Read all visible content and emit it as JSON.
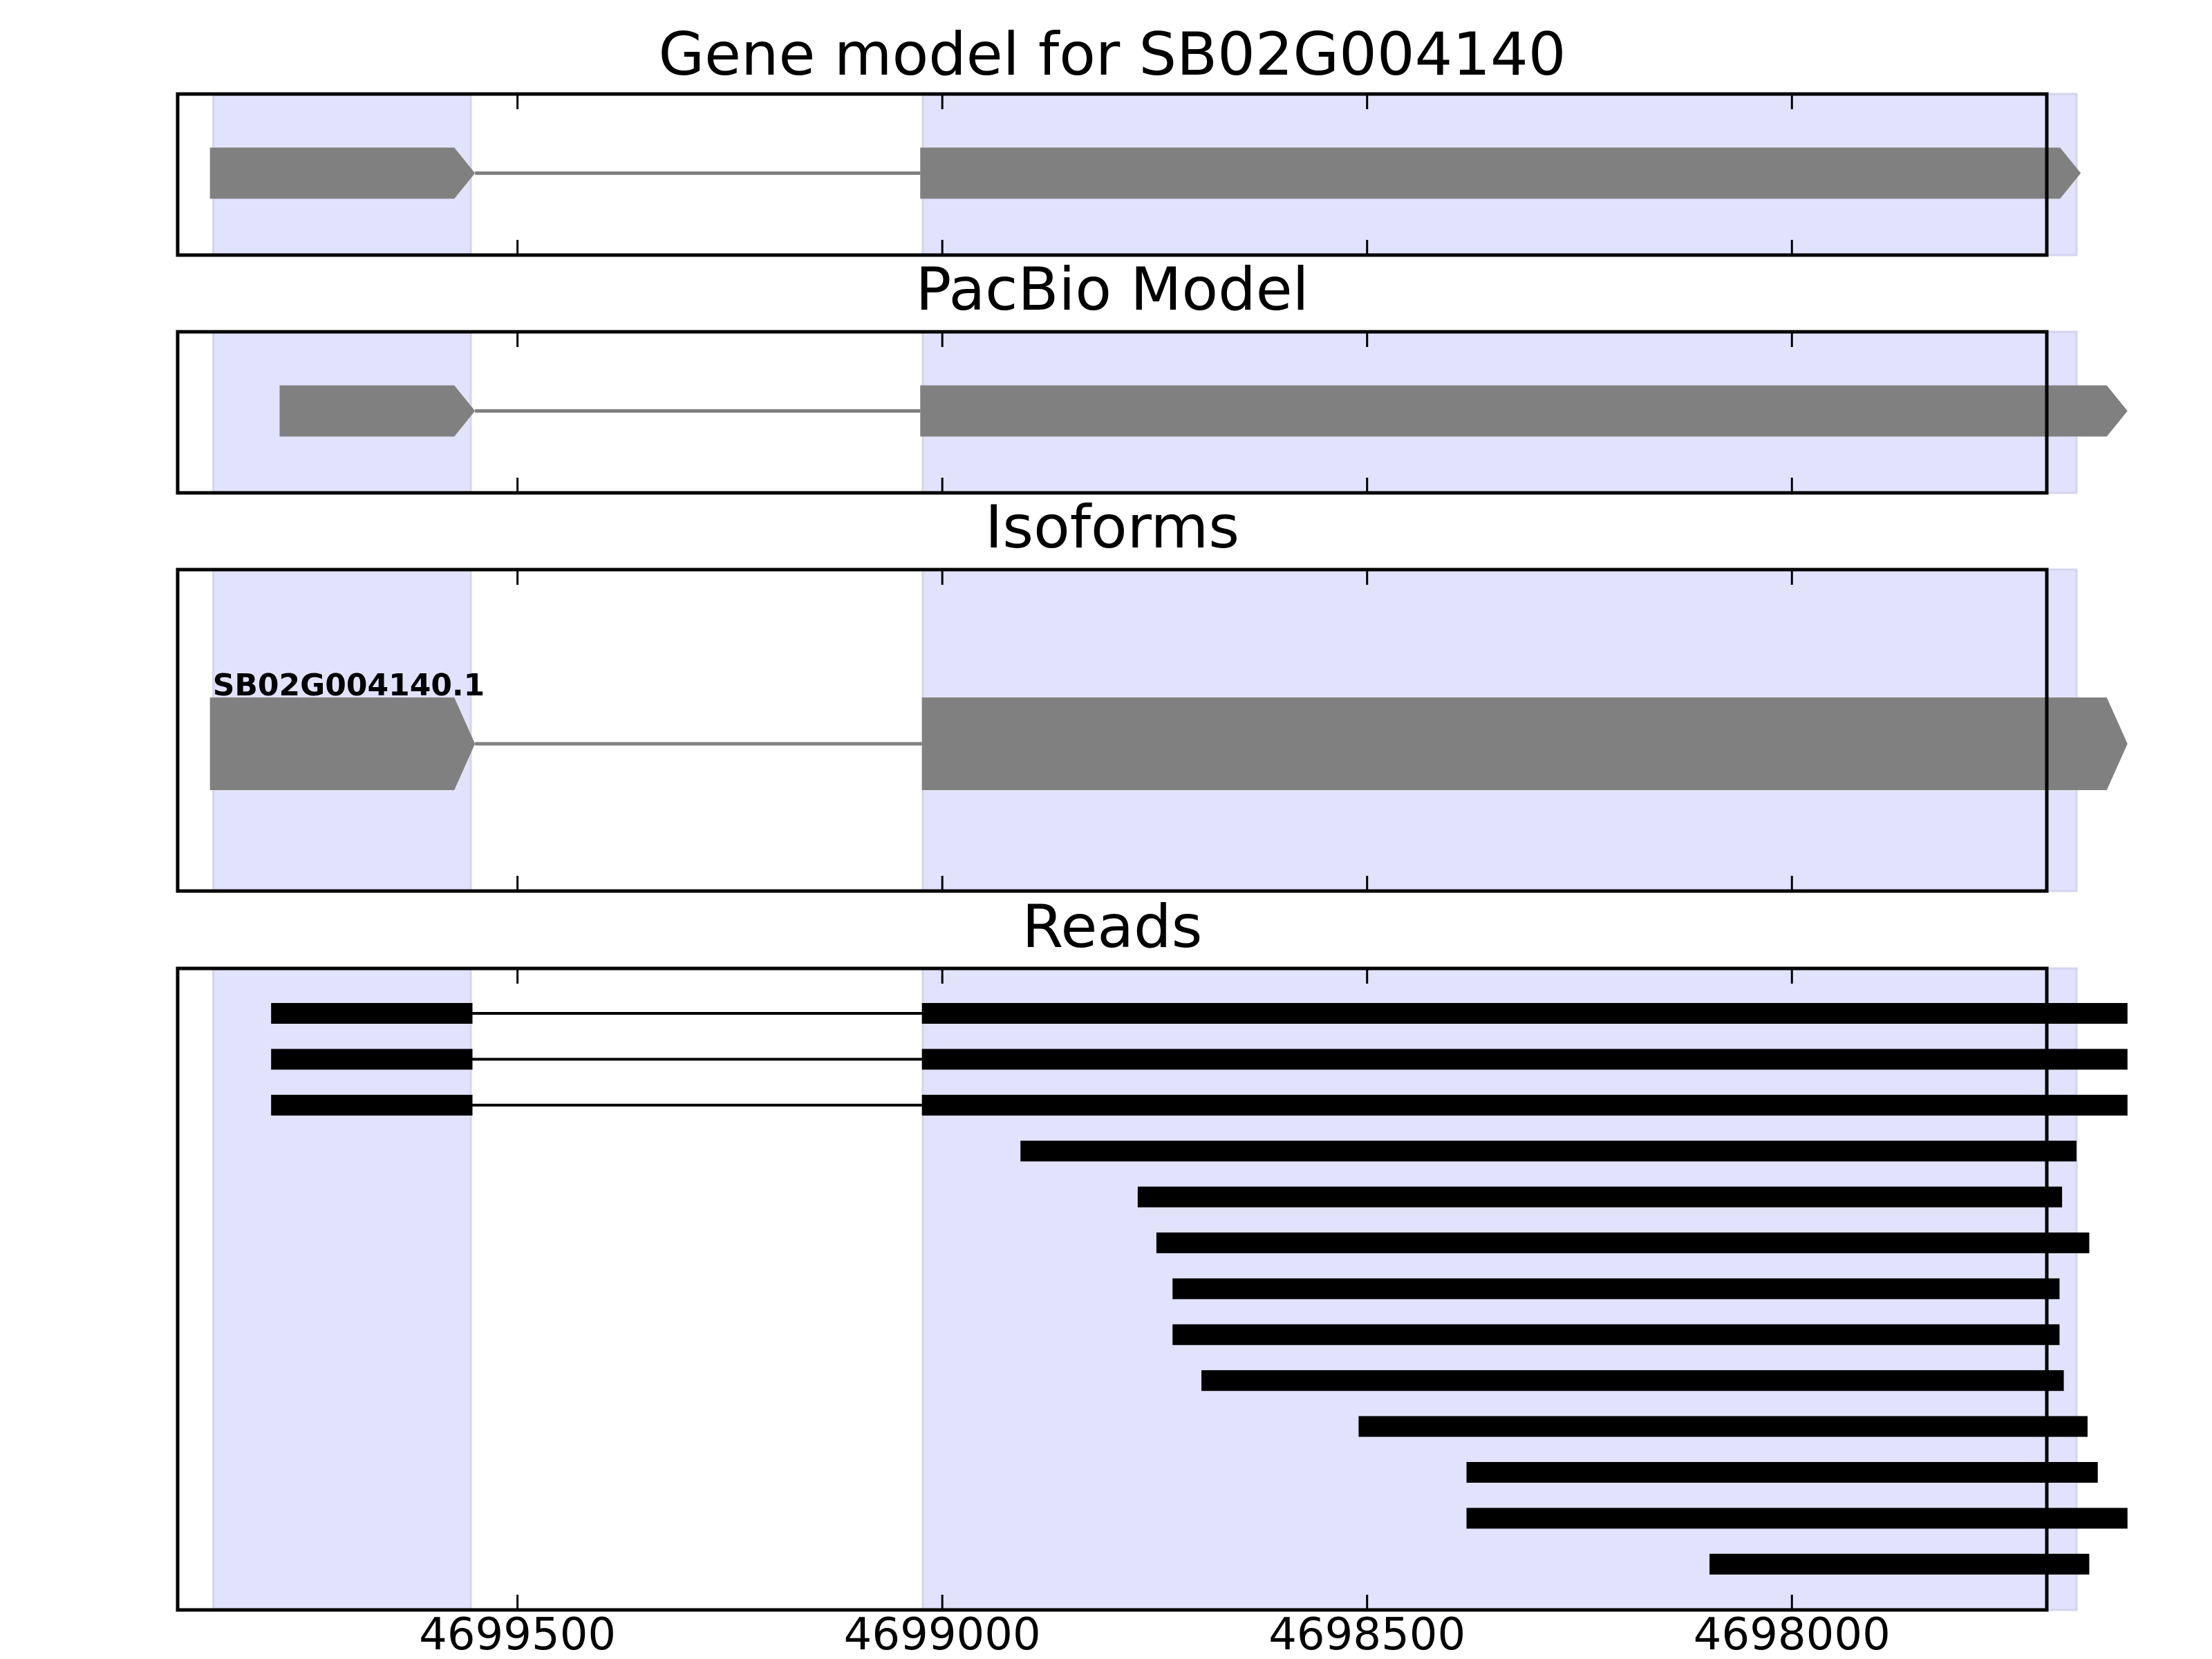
{
  "chart_data": {
    "type": "gene-track",
    "x_axis": {
      "reversed": true,
      "xlim": [
        4699900,
        4697700
      ],
      "ticks": [
        4699500,
        4699000,
        4698500,
        4698000
      ],
      "tick_labels": [
        "4699500",
        "4699000",
        "4698500",
        "4698000"
      ]
    },
    "highlight_color": "#e2e2fc",
    "highlight_regions": [
      [
        4699858,
        4699555
      ],
      [
        4699023,
        4697665
      ]
    ],
    "panels": [
      {
        "id": "gene-model",
        "title": "Gene model for SB02G004140",
        "exon_color": "#808080",
        "exons": [
          [
            4699862,
            4699550
          ],
          [
            4699026,
            4697660
          ]
        ]
      },
      {
        "id": "pacbio-model",
        "title": "PacBio Model",
        "exon_color": "#808080",
        "exons": [
          [
            4699780,
            4699550
          ],
          [
            4699026,
            4697605
          ]
        ]
      },
      {
        "id": "isoforms",
        "title": "Isoforms",
        "exon_color": "#808080",
        "isoforms": [
          {
            "label": "SB02G004140.1",
            "exons": [
              [
                4699862,
                4699550
              ],
              [
                4699024,
                4697605
              ]
            ]
          }
        ]
      },
      {
        "id": "reads",
        "title": "Reads",
        "read_color": "#000000",
        "reads": [
          [
            [
              4699790,
              4699553
            ],
            [
              4699024,
              4697605
            ]
          ],
          [
            [
              4699790,
              4699553
            ],
            [
              4699024,
              4697605
            ]
          ],
          [
            [
              4699790,
              4699553
            ],
            [
              4699024,
              4697605
            ]
          ],
          [
            [
              4698908,
              4697665
            ]
          ],
          [
            [
              4698770,
              4697682
            ]
          ],
          [
            [
              4698748,
              4697650
            ]
          ],
          [
            [
              4698729,
              4697685
            ]
          ],
          [
            [
              4698729,
              4697685
            ]
          ],
          [
            [
              4698695,
              4697680
            ]
          ],
          [
            [
              4698510,
              4697652
            ]
          ],
          [
            [
              4698383,
              4697640
            ]
          ],
          [
            [
              4698383,
              4697605
            ]
          ],
          [
            [
              4698097,
              4697650
            ]
          ]
        ]
      }
    ]
  }
}
